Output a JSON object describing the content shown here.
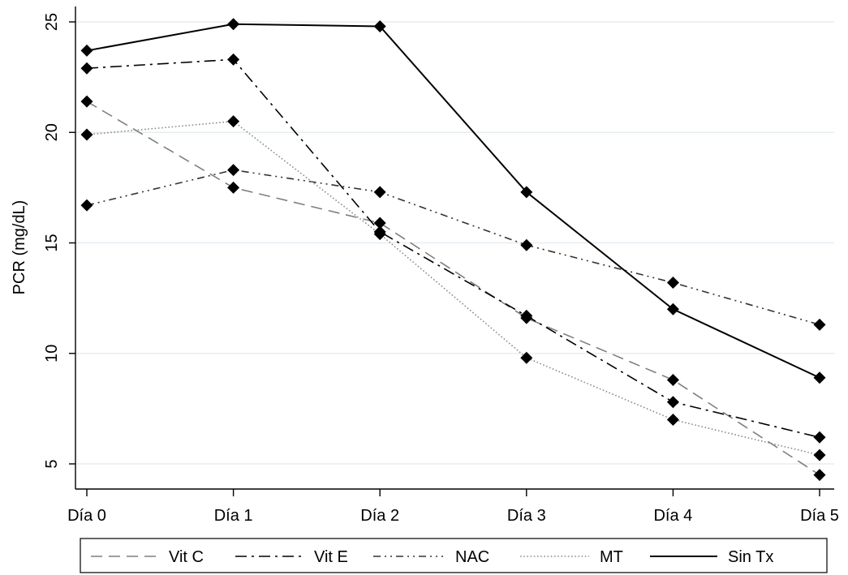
{
  "chart_data": {
    "type": "line",
    "title": "",
    "xlabel": "",
    "ylabel": "PCR (mg/dL)",
    "categories": [
      "Día 0",
      "Día 1",
      "Día 2",
      "Día 3",
      "Día 4",
      "Día 5"
    ],
    "yticks": [
      5,
      10,
      15,
      20,
      25
    ],
    "ylim": [
      4.0,
      25.5
    ],
    "grid": true,
    "grid_color": "#e6eef2",
    "marker": "diamond",
    "legend_placement": "bottom",
    "series": [
      {
        "name": "Vit C",
        "dash": "dashed",
        "color": "#7f7f7f",
        "values": [
          21.4,
          17.5,
          15.9,
          11.6,
          8.8,
          4.5
        ]
      },
      {
        "name": "Vit E",
        "dash": "longdash-dot",
        "color": "#000000",
        "values": [
          22.9,
          23.3,
          15.5,
          11.7,
          7.8,
          6.2
        ]
      },
      {
        "name": "NAC",
        "dash": "dash-dot-dot",
        "color": "#333333",
        "values": [
          16.7,
          18.3,
          17.3,
          14.9,
          13.2,
          11.3
        ]
      },
      {
        "name": "MT",
        "dash": "dotted",
        "color": "#8c8c8c",
        "values": [
          19.9,
          20.5,
          15.4,
          9.8,
          7.0,
          5.4
        ]
      },
      {
        "name": "Sin Tx",
        "dash": "solid",
        "color": "#000000",
        "values": [
          23.7,
          24.9,
          24.8,
          17.3,
          12.0,
          8.9
        ]
      }
    ]
  }
}
